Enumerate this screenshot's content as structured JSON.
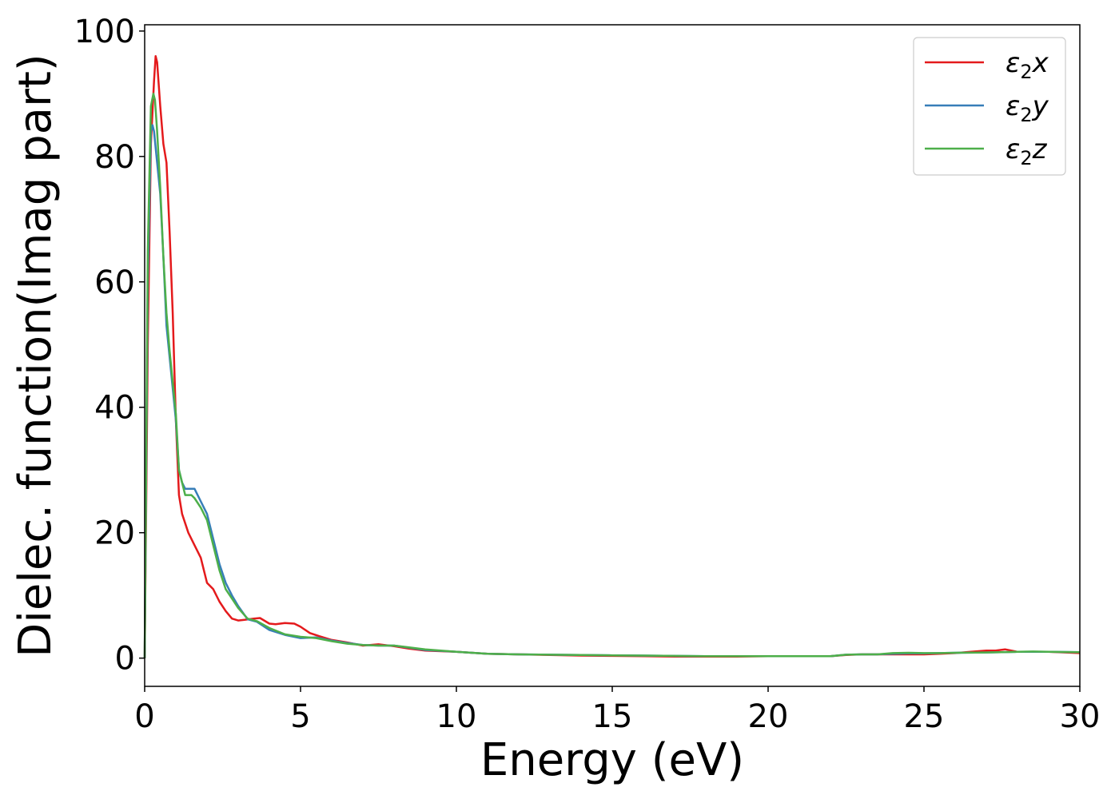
{
  "chart_data": {
    "type": "line",
    "xlabel": "Energy (eV)",
    "ylabel": "Dielec. function(Imag part)",
    "xlim": [
      0,
      30
    ],
    "ylim": [
      -4.5,
      101
    ],
    "xticks": [
      0,
      5,
      10,
      15,
      20,
      25,
      30
    ],
    "yticks": [
      0,
      20,
      40,
      60,
      80,
      100
    ],
    "grid": false,
    "legend_position": "top-right",
    "series": [
      {
        "name": "ε2x",
        "legend": {
          "base": "ε",
          "sub": "2",
          "var": "x"
        },
        "color": "#e41a1c",
        "x": [
          0,
          0.1,
          0.2,
          0.3,
          0.35,
          0.4,
          0.5,
          0.6,
          0.7,
          0.8,
          0.9,
          1.0,
          1.1,
          1.2,
          1.4,
          1.6,
          1.8,
          2.0,
          2.2,
          2.4,
          2.6,
          2.8,
          3.0,
          3.2,
          3.5,
          3.7,
          4.0,
          4.2,
          4.5,
          4.8,
          5.0,
          5.3,
          5.6,
          6.0,
          6.5,
          7.0,
          7.5,
          8.0,
          8.5,
          9.0,
          10.0,
          11.0,
          12.0,
          13.0,
          14.0,
          15.0,
          16.0,
          17.0,
          18.0,
          19.0,
          20.0,
          21.0,
          22.0,
          22.5,
          23.0,
          23.5,
          24.0,
          24.5,
          25.0,
          25.5,
          26.0,
          26.5,
          27.0,
          27.3,
          27.6,
          28.0,
          28.5,
          29.0,
          30.0
        ],
        "y": [
          0,
          50,
          82,
          92,
          96,
          95,
          88,
          82,
          79,
          68,
          55,
          38,
          26,
          23,
          20,
          18,
          16,
          12,
          11,
          9,
          7.5,
          6.3,
          6.0,
          6.1,
          6.3,
          6.4,
          5.5,
          5.4,
          5.6,
          5.5,
          5.0,
          4.0,
          3.5,
          2.9,
          2.5,
          2.0,
          2.2,
          1.9,
          1.5,
          1.2,
          1.0,
          0.7,
          0.6,
          0.5,
          0.4,
          0.35,
          0.3,
          0.25,
          0.25,
          0.25,
          0.3,
          0.3,
          0.3,
          0.5,
          0.6,
          0.6,
          0.6,
          0.6,
          0.6,
          0.7,
          0.8,
          1.0,
          1.2,
          1.2,
          1.4,
          1.0,
          1.0,
          1.0,
          0.8
        ]
      },
      {
        "name": "ε2y",
        "legend": {
          "base": "ε",
          "sub": "2",
          "var": "y"
        },
        "color": "#377eb8",
        "x": [
          0,
          0.1,
          0.2,
          0.25,
          0.3,
          0.4,
          0.5,
          0.6,
          0.7,
          0.8,
          1.0,
          1.1,
          1.2,
          1.3,
          1.5,
          1.6,
          1.8,
          2.0,
          2.2,
          2.4,
          2.6,
          2.8,
          3.0,
          3.3,
          3.6,
          4.0,
          4.5,
          5.0,
          5.5,
          6.0,
          6.5,
          7.0,
          7.5,
          8.0,
          9.0,
          10.0,
          11.0,
          12.0,
          13.0,
          14.0,
          15.0,
          16.0,
          17.0,
          18.0,
          19.0,
          20.0,
          21.0,
          22.0,
          22.5,
          23.0,
          23.5,
          24.0,
          24.5,
          25.0,
          25.5,
          26.0,
          27.0,
          28.0,
          28.5,
          29.0,
          30.0
        ],
        "y": [
          0,
          60,
          84,
          85,
          84,
          79,
          74,
          64,
          53,
          48,
          38,
          30,
          28,
          27,
          27,
          27,
          25,
          23,
          19,
          15,
          12,
          10,
          8.3,
          6.2,
          5.8,
          4.5,
          3.7,
          3.2,
          3.3,
          2.8,
          2.4,
          2.1,
          2.0,
          2.0,
          1.3,
          1.0,
          0.7,
          0.6,
          0.55,
          0.5,
          0.45,
          0.4,
          0.35,
          0.3,
          0.3,
          0.3,
          0.3,
          0.3,
          0.55,
          0.6,
          0.6,
          0.7,
          0.75,
          0.75,
          0.8,
          0.85,
          0.9,
          1.0,
          1.0,
          1.0,
          0.95
        ]
      },
      {
        "name": "ε2z",
        "legend": {
          "base": "ε",
          "sub": "2",
          "var": "z"
        },
        "color": "#4daf4a",
        "x": [
          0,
          0.1,
          0.2,
          0.28,
          0.33,
          0.4,
          0.5,
          0.6,
          0.7,
          0.8,
          1.0,
          1.1,
          1.2,
          1.3,
          1.5,
          1.6,
          1.8,
          2.0,
          2.2,
          2.4,
          2.6,
          2.8,
          3.0,
          3.3,
          3.6,
          4.0,
          4.5,
          5.0,
          5.5,
          6.0,
          6.5,
          7.0,
          7.5,
          8.0,
          9.0,
          10.0,
          11.0,
          12.0,
          13.0,
          14.0,
          15.0,
          16.0,
          17.0,
          18.0,
          19.0,
          20.0,
          21.0,
          22.0,
          22.5,
          23.0,
          23.5,
          24.0,
          24.5,
          25.0,
          25.5,
          26.0,
          27.0,
          28.0,
          28.5,
          29.0,
          30.0
        ],
        "y": [
          0,
          65,
          88,
          90,
          89,
          84,
          75,
          64,
          55,
          49,
          39,
          30,
          28,
          26,
          26,
          25.5,
          24,
          22,
          18,
          14,
          11,
          9.5,
          8.0,
          6.3,
          5.9,
          4.8,
          3.8,
          3.4,
          3.2,
          2.7,
          2.3,
          2.1,
          2.0,
          2.0,
          1.4,
          1.0,
          0.7,
          0.6,
          0.55,
          0.5,
          0.45,
          0.4,
          0.35,
          0.3,
          0.3,
          0.3,
          0.3,
          0.3,
          0.55,
          0.6,
          0.6,
          0.8,
          0.85,
          0.8,
          0.8,
          0.85,
          0.9,
          1.0,
          1.05,
          1.0,
          0.95
        ]
      }
    ]
  }
}
